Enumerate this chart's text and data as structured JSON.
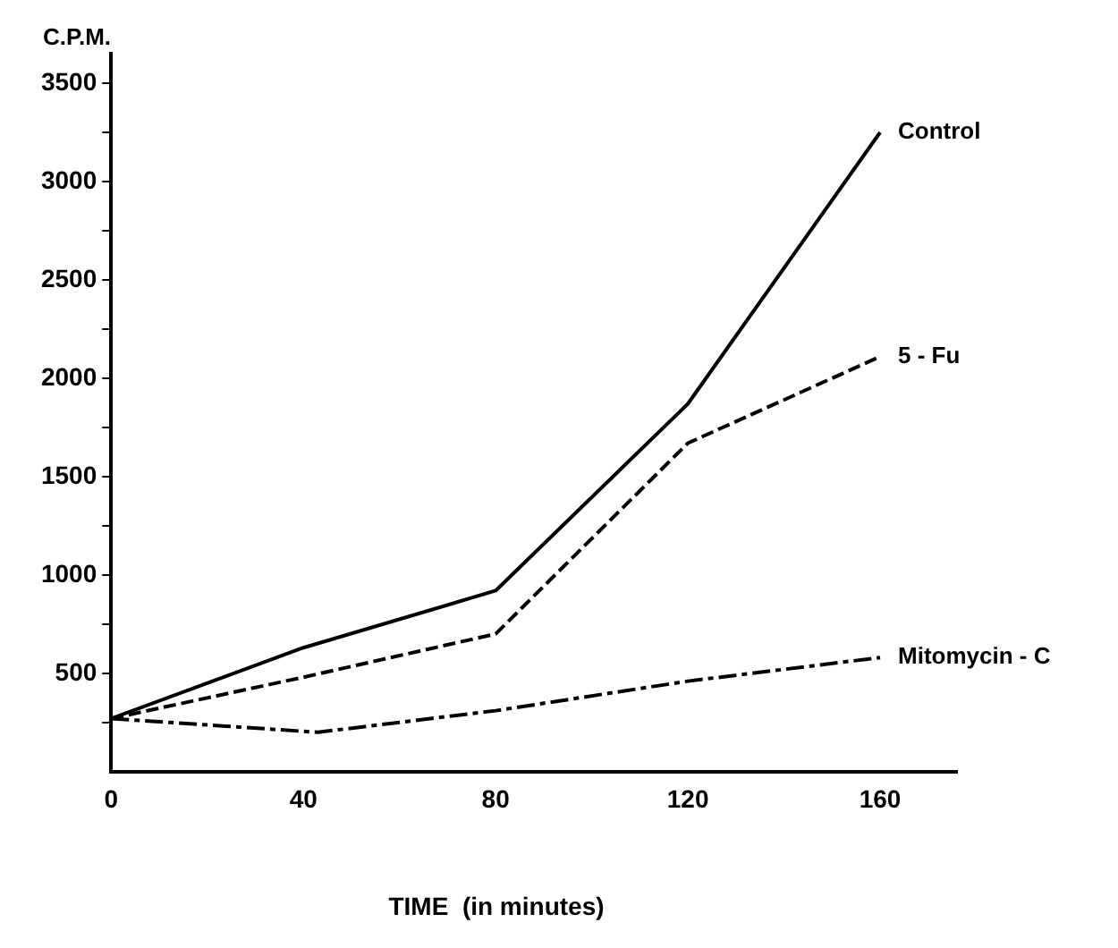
{
  "chart_data": {
    "type": "line",
    "ylabel": "C.P.M.",
    "xlabel": "TIME  (in minutes)",
    "xlim": [
      0,
      176
    ],
    "xticks": [
      0,
      40,
      80,
      120,
      160
    ],
    "ylim": [
      0,
      3650
    ],
    "yticks": [
      {
        "value": 250,
        "label": null
      },
      500,
      {
        "value": 750,
        "label": null
      },
      1000,
      {
        "value": 1250,
        "label": null
      },
      1500,
      {
        "value": 1750,
        "label": null
      },
      2000,
      {
        "value": 2250,
        "label": null
      },
      2500,
      {
        "value": 2750,
        "label": null
      },
      3000,
      {
        "value": 3250,
        "label": null
      },
      3500
    ],
    "grid": false,
    "legend": false,
    "marker": "none",
    "series": [
      {
        "name": "Control",
        "color": "#000000",
        "line_style": "solid",
        "x": [
          0,
          40,
          80,
          120,
          160
        ],
        "values": [
          270,
          630,
          920,
          1870,
          3250
        ]
      },
      {
        "name": "5 - Fu",
        "color": "#000000",
        "line_style": "dashed",
        "x": [
          0,
          40,
          80,
          120,
          160
        ],
        "values": [
          270,
          480,
          700,
          1670,
          2110
        ]
      },
      {
        "name": "Mitomycin - C",
        "color": "#000000",
        "line_style": "dotted",
        "x": [
          0,
          43,
          80,
          120,
          160
        ],
        "values": [
          270,
          200,
          310,
          460,
          580
        ]
      }
    ]
  }
}
